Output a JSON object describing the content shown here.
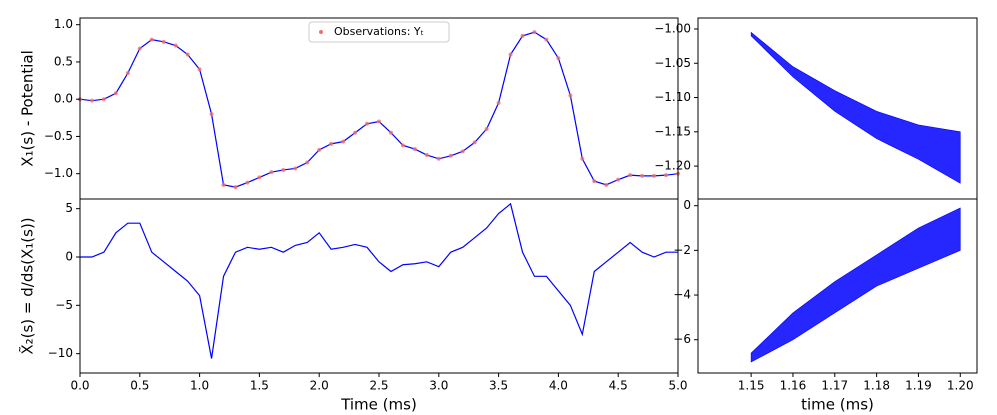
{
  "chart_data": [
    {
      "type": "line",
      "ylabel": "X₁(s) - Potential",
      "legend": "upper center",
      "x": [
        0.0,
        0.1,
        0.2,
        0.3,
        0.4,
        0.5,
        0.6,
        0.7,
        0.8,
        0.9,
        1.0,
        1.1,
        1.2,
        1.3,
        1.4,
        1.5,
        1.6,
        1.7,
        1.8,
        1.9,
        2.0,
        2.1,
        2.2,
        2.3,
        2.4,
        2.5,
        2.6,
        2.7,
        2.8,
        2.9,
        3.0,
        3.1,
        3.2,
        3.3,
        3.4,
        3.5,
        3.6,
        3.7,
        3.8,
        3.9,
        4.0,
        4.1,
        4.2,
        4.3,
        4.4,
        4.5,
        4.6,
        4.7,
        4.8,
        4.9,
        5.0
      ],
      "series": [
        {
          "color": "#0000ff",
          "marker": "line",
          "values": [
            0.0,
            -0.02,
            0.0,
            0.08,
            0.35,
            0.68,
            0.8,
            0.77,
            0.72,
            0.6,
            0.4,
            -0.2,
            -1.15,
            -1.18,
            -1.12,
            -1.05,
            -0.98,
            -0.95,
            -0.93,
            -0.85,
            -0.68,
            -0.6,
            -0.57,
            -0.45,
            -0.33,
            -0.3,
            -0.45,
            -0.62,
            -0.67,
            -0.75,
            -0.8,
            -0.76,
            -0.7,
            -0.58,
            -0.4,
            -0.05,
            0.6,
            0.85,
            0.9,
            0.8,
            0.55,
            0.05,
            -0.8,
            -1.1,
            -1.15,
            -1.08,
            -1.02,
            -1.03,
            -1.03,
            -1.02,
            -1.0
          ]
        },
        {
          "name": "Observations: Yₜ",
          "color": "#f07070",
          "marker": "scatter",
          "values": [
            0.0,
            -0.02,
            0.0,
            0.08,
            0.35,
            0.68,
            0.8,
            0.77,
            0.72,
            0.6,
            0.4,
            -0.2,
            -1.15,
            -1.18,
            -1.12,
            -1.05,
            -0.98,
            -0.95,
            -0.93,
            -0.85,
            -0.68,
            -0.6,
            -0.57,
            -0.45,
            -0.33,
            -0.3,
            -0.45,
            -0.62,
            -0.67,
            -0.75,
            -0.8,
            -0.76,
            -0.7,
            -0.58,
            -0.4,
            -0.05,
            0.6,
            0.85,
            0.9,
            0.8,
            0.55,
            0.05,
            -0.8,
            -1.1,
            -1.15,
            -1.08,
            -1.02,
            -1.03,
            -1.03,
            -1.02,
            -1.0
          ]
        }
      ],
      "xlim": [
        0.0,
        5.0
      ],
      "ylim": [
        -1.34,
        1.09
      ],
      "yticks": [
        {
          "value": -1.0,
          "label": "−1.0"
        },
        {
          "value": -0.5,
          "label": "−0.5"
        },
        {
          "value": 0.0,
          "label": "0.0"
        },
        {
          "value": 0.5,
          "label": "0.5"
        },
        {
          "value": 1.0,
          "label": "1.0"
        }
      ]
    },
    {
      "type": "line",
      "ylabel": "X̃₂(s) = d/ds(X₁(s))",
      "xlabel": "Time (ms)",
      "x": [
        0.0,
        0.1,
        0.2,
        0.3,
        0.4,
        0.5,
        0.6,
        0.7,
        0.8,
        0.9,
        1.0,
        1.1,
        1.2,
        1.3,
        1.4,
        1.5,
        1.6,
        1.7,
        1.8,
        1.9,
        2.0,
        2.1,
        2.2,
        2.3,
        2.4,
        2.5,
        2.6,
        2.7,
        2.8,
        2.9,
        3.0,
        3.1,
        3.2,
        3.3,
        3.4,
        3.5,
        3.6,
        3.7,
        3.8,
        3.9,
        4.0,
        4.1,
        4.2,
        4.3,
        4.4,
        4.5,
        4.6,
        4.7,
        4.8,
        4.9,
        5.0
      ],
      "series": [
        {
          "color": "#0000ff",
          "marker": "line",
          "values": [
            0,
            0,
            0.5,
            2.5,
            3.5,
            3.5,
            0.5,
            -0.5,
            -1.5,
            -2.5,
            -4,
            -10.5,
            -2,
            0.5,
            1,
            0.8,
            1,
            0.5,
            1.2,
            1.5,
            2.5,
            0.8,
            1,
            1.3,
            1,
            -0.5,
            -1.5,
            -0.8,
            -0.7,
            -0.5,
            -1,
            0.5,
            1,
            2,
            3,
            4.5,
            5.5,
            0.5,
            -2,
            -2,
            -3.5,
            -5,
            -8,
            -1.5,
            -0.5,
            0.5,
            1.5,
            0.5,
            0,
            0.5,
            0.5
          ]
        }
      ],
      "xlim": [
        0.0,
        5.0
      ],
      "xticks": [
        {
          "value": 0.0,
          "label": "0.0"
        },
        0.5,
        {
          "value": 1.0,
          "label": "1.0"
        },
        1.5,
        {
          "value": 2.0,
          "label": "2.0"
        },
        2.5,
        {
          "value": 3.0,
          "label": "3.0"
        },
        3.5,
        {
          "value": 4.0,
          "label": "4.0"
        },
        4.5,
        {
          "value": 5.0,
          "label": "5.0"
        }
      ],
      "ylim": [
        -12,
        6
      ],
      "yticks": [
        {
          "value": -10,
          "label": "−10"
        },
        {
          "value": -5,
          "label": "−5"
        },
        0,
        5
      ]
    },
    {
      "type": "area",
      "color": "#0000ff",
      "x": [
        1.15,
        1.16,
        1.17,
        1.18,
        1.19,
        1.2
      ],
      "upper": [
        -1.005,
        -1.055,
        -1.09,
        -1.12,
        -1.14,
        -1.15
      ],
      "lower": [
        -1.01,
        -1.07,
        -1.12,
        -1.16,
        -1.19,
        -1.225
      ],
      "xlim": [
        1.1373,
        1.204
      ],
      "ylim": [
        -1.248,
        -0.984
      ],
      "yticks": [
        {
          "value": -1.2,
          "label": "−1.20"
        },
        {
          "value": -1.15,
          "label": "−1.15"
        },
        {
          "value": -1.1,
          "label": "−1.10"
        },
        {
          "value": -1.05,
          "label": "−1.05"
        },
        {
          "value": -1.0,
          "label": "−1.00"
        }
      ]
    },
    {
      "type": "area",
      "color": "#0000ff",
      "xlabel": "time (ms)",
      "x": [
        1.15,
        1.16,
        1.17,
        1.18,
        1.19,
        1.2
      ],
      "upper": [
        -6.6,
        -4.8,
        -3.4,
        -2.2,
        -1.0,
        -0.1
      ],
      "lower": [
        -7.0,
        -6.0,
        -4.8,
        -3.6,
        -2.8,
        -2.0
      ],
      "xlim": [
        1.1373,
        1.204
      ],
      "xticks": [
        1.15,
        1.16,
        1.17,
        1.18,
        1.19,
        {
          "value": 1.2,
          "label": "1.20"
        }
      ],
      "ylim": [
        -7.49,
        0.3
      ],
      "yticks": [
        {
          "value": -6,
          "label": "−6"
        },
        {
          "value": -4,
          "label": "−4"
        },
        {
          "value": -2,
          "label": "−2"
        },
        0
      ]
    }
  ]
}
